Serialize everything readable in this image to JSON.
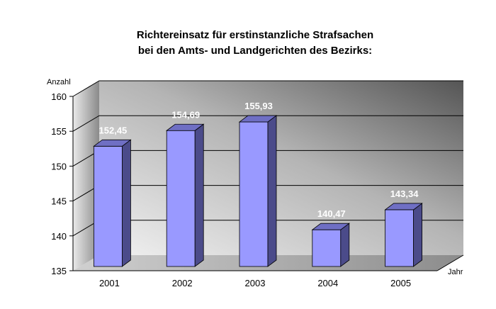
{
  "chart_data": {
    "type": "bar",
    "title_lines": [
      "Richtereinsatz für erstinstanzliche Strafsachen",
      "bei den Amts- und Landgerichten des Bezirks:"
    ],
    "xlabel": "Jahr",
    "ylabel": "Anzahl",
    "categories": [
      "2001",
      "2002",
      "2003",
      "2004",
      "2005"
    ],
    "values": [
      152.45,
      154.69,
      155.93,
      140.47,
      143.34
    ],
    "value_labels": [
      "152,45",
      "154,69",
      "155,93",
      "140,47",
      "143,34"
    ],
    "ylim": [
      135,
      160
    ],
    "yticks": [
      135,
      140,
      145,
      150,
      155,
      160
    ],
    "grid": true,
    "legend": "none",
    "colors": {
      "bar_front": "#9999ff",
      "bar_side": "#4b4b8a",
      "bar_top": "#6f6fc4",
      "wall_light": "#e8e8e8",
      "wall_dark": "#6a6a6a",
      "value_label": "#ffffff"
    }
  }
}
